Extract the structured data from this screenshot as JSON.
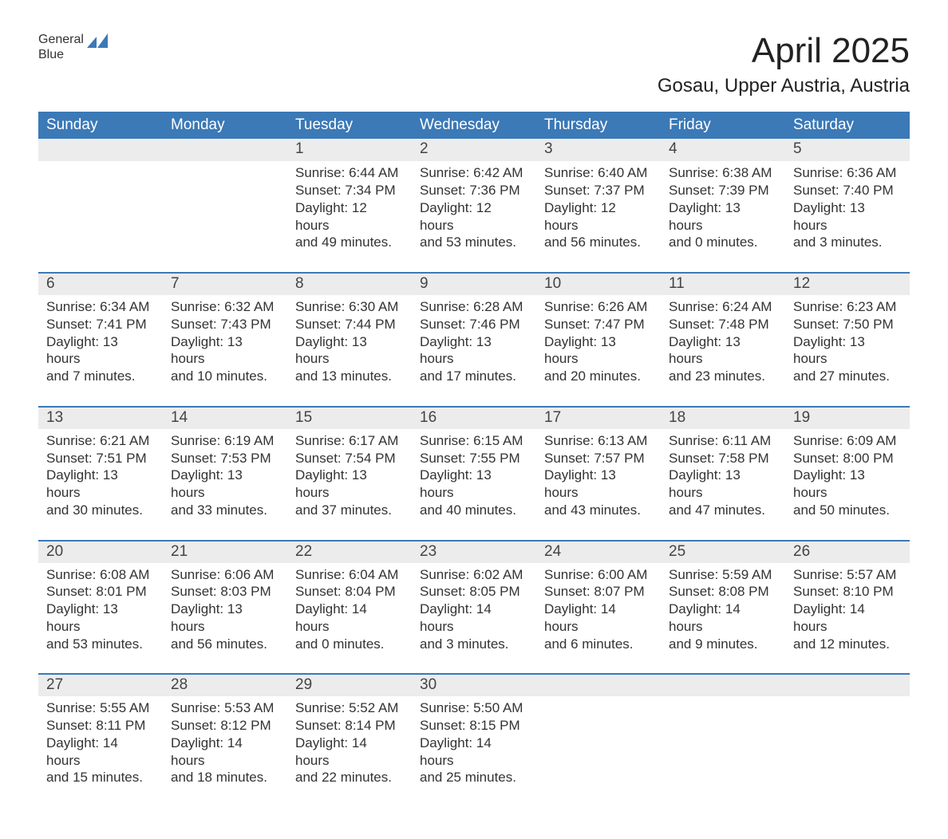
{
  "brand": {
    "general": "General",
    "blue": "Blue",
    "logo_color": "#3b79b7"
  },
  "title": "April 2025",
  "subtitle": "Gosau, Upper Austria, Austria",
  "colors": {
    "header_bg": "#3b79b7",
    "header_text": "#ffffff",
    "daynum_bg": "#ececec",
    "row_border": "#3b79b7",
    "body_text": "#333333",
    "background": "#ffffff"
  },
  "typography": {
    "title_fontsize": 44,
    "subtitle_fontsize": 24,
    "header_fontsize": 19,
    "daynum_fontsize": 19,
    "cell_fontsize": 17
  },
  "layout": {
    "columns": 7,
    "rows": 5
  },
  "day_headers": [
    "Sunday",
    "Monday",
    "Tuesday",
    "Wednesday",
    "Thursday",
    "Friday",
    "Saturday"
  ],
  "weeks": [
    [
      {
        "num": "",
        "lines": []
      },
      {
        "num": "",
        "lines": []
      },
      {
        "num": "1",
        "lines": [
          "Sunrise: 6:44 AM",
          "Sunset: 7:34 PM",
          "Daylight: 12 hours",
          "and 49 minutes."
        ]
      },
      {
        "num": "2",
        "lines": [
          "Sunrise: 6:42 AM",
          "Sunset: 7:36 PM",
          "Daylight: 12 hours",
          "and 53 minutes."
        ]
      },
      {
        "num": "3",
        "lines": [
          "Sunrise: 6:40 AM",
          "Sunset: 7:37 PM",
          "Daylight: 12 hours",
          "and 56 minutes."
        ]
      },
      {
        "num": "4",
        "lines": [
          "Sunrise: 6:38 AM",
          "Sunset: 7:39 PM",
          "Daylight: 13 hours",
          "and 0 minutes."
        ]
      },
      {
        "num": "5",
        "lines": [
          "Sunrise: 6:36 AM",
          "Sunset: 7:40 PM",
          "Daylight: 13 hours",
          "and 3 minutes."
        ]
      }
    ],
    [
      {
        "num": "6",
        "lines": [
          "Sunrise: 6:34 AM",
          "Sunset: 7:41 PM",
          "Daylight: 13 hours",
          "and 7 minutes."
        ]
      },
      {
        "num": "7",
        "lines": [
          "Sunrise: 6:32 AM",
          "Sunset: 7:43 PM",
          "Daylight: 13 hours",
          "and 10 minutes."
        ]
      },
      {
        "num": "8",
        "lines": [
          "Sunrise: 6:30 AM",
          "Sunset: 7:44 PM",
          "Daylight: 13 hours",
          "and 13 minutes."
        ]
      },
      {
        "num": "9",
        "lines": [
          "Sunrise: 6:28 AM",
          "Sunset: 7:46 PM",
          "Daylight: 13 hours",
          "and 17 minutes."
        ]
      },
      {
        "num": "10",
        "lines": [
          "Sunrise: 6:26 AM",
          "Sunset: 7:47 PM",
          "Daylight: 13 hours",
          "and 20 minutes."
        ]
      },
      {
        "num": "11",
        "lines": [
          "Sunrise: 6:24 AM",
          "Sunset: 7:48 PM",
          "Daylight: 13 hours",
          "and 23 minutes."
        ]
      },
      {
        "num": "12",
        "lines": [
          "Sunrise: 6:23 AM",
          "Sunset: 7:50 PM",
          "Daylight: 13 hours",
          "and 27 minutes."
        ]
      }
    ],
    [
      {
        "num": "13",
        "lines": [
          "Sunrise: 6:21 AM",
          "Sunset: 7:51 PM",
          "Daylight: 13 hours",
          "and 30 minutes."
        ]
      },
      {
        "num": "14",
        "lines": [
          "Sunrise: 6:19 AM",
          "Sunset: 7:53 PM",
          "Daylight: 13 hours",
          "and 33 minutes."
        ]
      },
      {
        "num": "15",
        "lines": [
          "Sunrise: 6:17 AM",
          "Sunset: 7:54 PM",
          "Daylight: 13 hours",
          "and 37 minutes."
        ]
      },
      {
        "num": "16",
        "lines": [
          "Sunrise: 6:15 AM",
          "Sunset: 7:55 PM",
          "Daylight: 13 hours",
          "and 40 minutes."
        ]
      },
      {
        "num": "17",
        "lines": [
          "Sunrise: 6:13 AM",
          "Sunset: 7:57 PM",
          "Daylight: 13 hours",
          "and 43 minutes."
        ]
      },
      {
        "num": "18",
        "lines": [
          "Sunrise: 6:11 AM",
          "Sunset: 7:58 PM",
          "Daylight: 13 hours",
          "and 47 minutes."
        ]
      },
      {
        "num": "19",
        "lines": [
          "Sunrise: 6:09 AM",
          "Sunset: 8:00 PM",
          "Daylight: 13 hours",
          "and 50 minutes."
        ]
      }
    ],
    [
      {
        "num": "20",
        "lines": [
          "Sunrise: 6:08 AM",
          "Sunset: 8:01 PM",
          "Daylight: 13 hours",
          "and 53 minutes."
        ]
      },
      {
        "num": "21",
        "lines": [
          "Sunrise: 6:06 AM",
          "Sunset: 8:03 PM",
          "Daylight: 13 hours",
          "and 56 minutes."
        ]
      },
      {
        "num": "22",
        "lines": [
          "Sunrise: 6:04 AM",
          "Sunset: 8:04 PM",
          "Daylight: 14 hours",
          "and 0 minutes."
        ]
      },
      {
        "num": "23",
        "lines": [
          "Sunrise: 6:02 AM",
          "Sunset: 8:05 PM",
          "Daylight: 14 hours",
          "and 3 minutes."
        ]
      },
      {
        "num": "24",
        "lines": [
          "Sunrise: 6:00 AM",
          "Sunset: 8:07 PM",
          "Daylight: 14 hours",
          "and 6 minutes."
        ]
      },
      {
        "num": "25",
        "lines": [
          "Sunrise: 5:59 AM",
          "Sunset: 8:08 PM",
          "Daylight: 14 hours",
          "and 9 minutes."
        ]
      },
      {
        "num": "26",
        "lines": [
          "Sunrise: 5:57 AM",
          "Sunset: 8:10 PM",
          "Daylight: 14 hours",
          "and 12 minutes."
        ]
      }
    ],
    [
      {
        "num": "27",
        "lines": [
          "Sunrise: 5:55 AM",
          "Sunset: 8:11 PM",
          "Daylight: 14 hours",
          "and 15 minutes."
        ]
      },
      {
        "num": "28",
        "lines": [
          "Sunrise: 5:53 AM",
          "Sunset: 8:12 PM",
          "Daylight: 14 hours",
          "and 18 minutes."
        ]
      },
      {
        "num": "29",
        "lines": [
          "Sunrise: 5:52 AM",
          "Sunset: 8:14 PM",
          "Daylight: 14 hours",
          "and 22 minutes."
        ]
      },
      {
        "num": "30",
        "lines": [
          "Sunrise: 5:50 AM",
          "Sunset: 8:15 PM",
          "Daylight: 14 hours",
          "and 25 minutes."
        ]
      },
      {
        "num": "",
        "lines": []
      },
      {
        "num": "",
        "lines": []
      },
      {
        "num": "",
        "lines": []
      }
    ]
  ]
}
